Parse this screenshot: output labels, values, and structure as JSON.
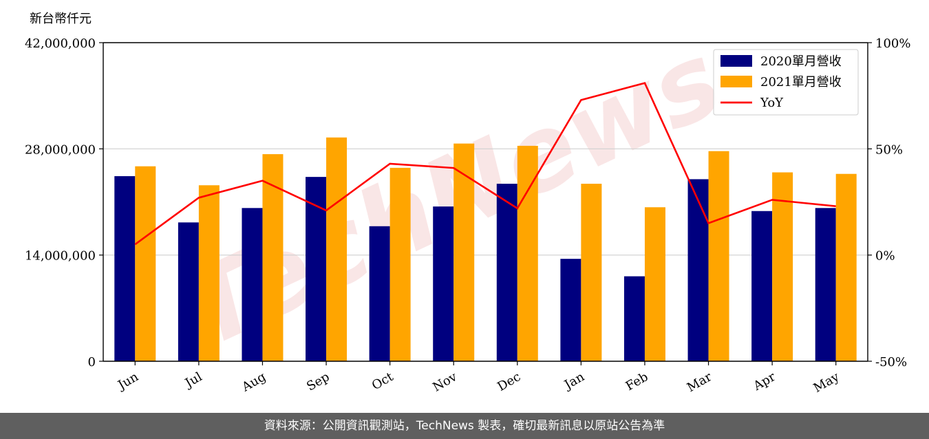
{
  "footer": {
    "source_text": "資料來源：公開資訊觀測站，TechNews 製表，確切最新訊息以原站公告為準"
  },
  "watermark": {
    "text": "TechNews"
  },
  "chart_data": {
    "type": "bar",
    "unit_label": "新台幣仟元",
    "categories": [
      "Jun",
      "Jul",
      "Aug",
      "Sep",
      "Oct",
      "Nov",
      "Dec",
      "Jan",
      "Feb",
      "Mar",
      "Apr",
      "May"
    ],
    "series": [
      {
        "name": "2020單月營收",
        "type": "bar",
        "axis": "left",
        "color": "#00007f",
        "values": [
          24400000,
          18300000,
          20200000,
          24300000,
          17800000,
          20400000,
          23400000,
          13500000,
          11200000,
          24000000,
          19800000,
          20200000
        ]
      },
      {
        "name": "2021單月營收",
        "type": "bar",
        "axis": "left",
        "color": "#ffa500",
        "values": [
          25700000,
          23200000,
          27300000,
          29500000,
          25500000,
          28700000,
          28400000,
          23400000,
          20300000,
          27700000,
          24900000,
          24700000
        ]
      },
      {
        "name": "YoY",
        "type": "line",
        "axis": "right",
        "color": "#ff0000",
        "values": [
          5,
          27,
          35,
          21,
          43,
          41,
          22,
          73,
          81,
          15,
          26,
          23
        ]
      }
    ],
    "y_left": {
      "min": 0,
      "max": 42000000,
      "ticks": [
        0,
        14000000,
        28000000,
        42000000
      ],
      "tick_labels": [
        "0",
        "14,000,000",
        "28,000,000",
        "42,000,000"
      ]
    },
    "y_right": {
      "min": -50,
      "max": 100,
      "ticks": [
        -50,
        0,
        50,
        100
      ],
      "tick_labels": [
        "-50%",
        "0%",
        "50%",
        "100%"
      ]
    },
    "grid": "horizontal",
    "legend_position": "top-right"
  }
}
